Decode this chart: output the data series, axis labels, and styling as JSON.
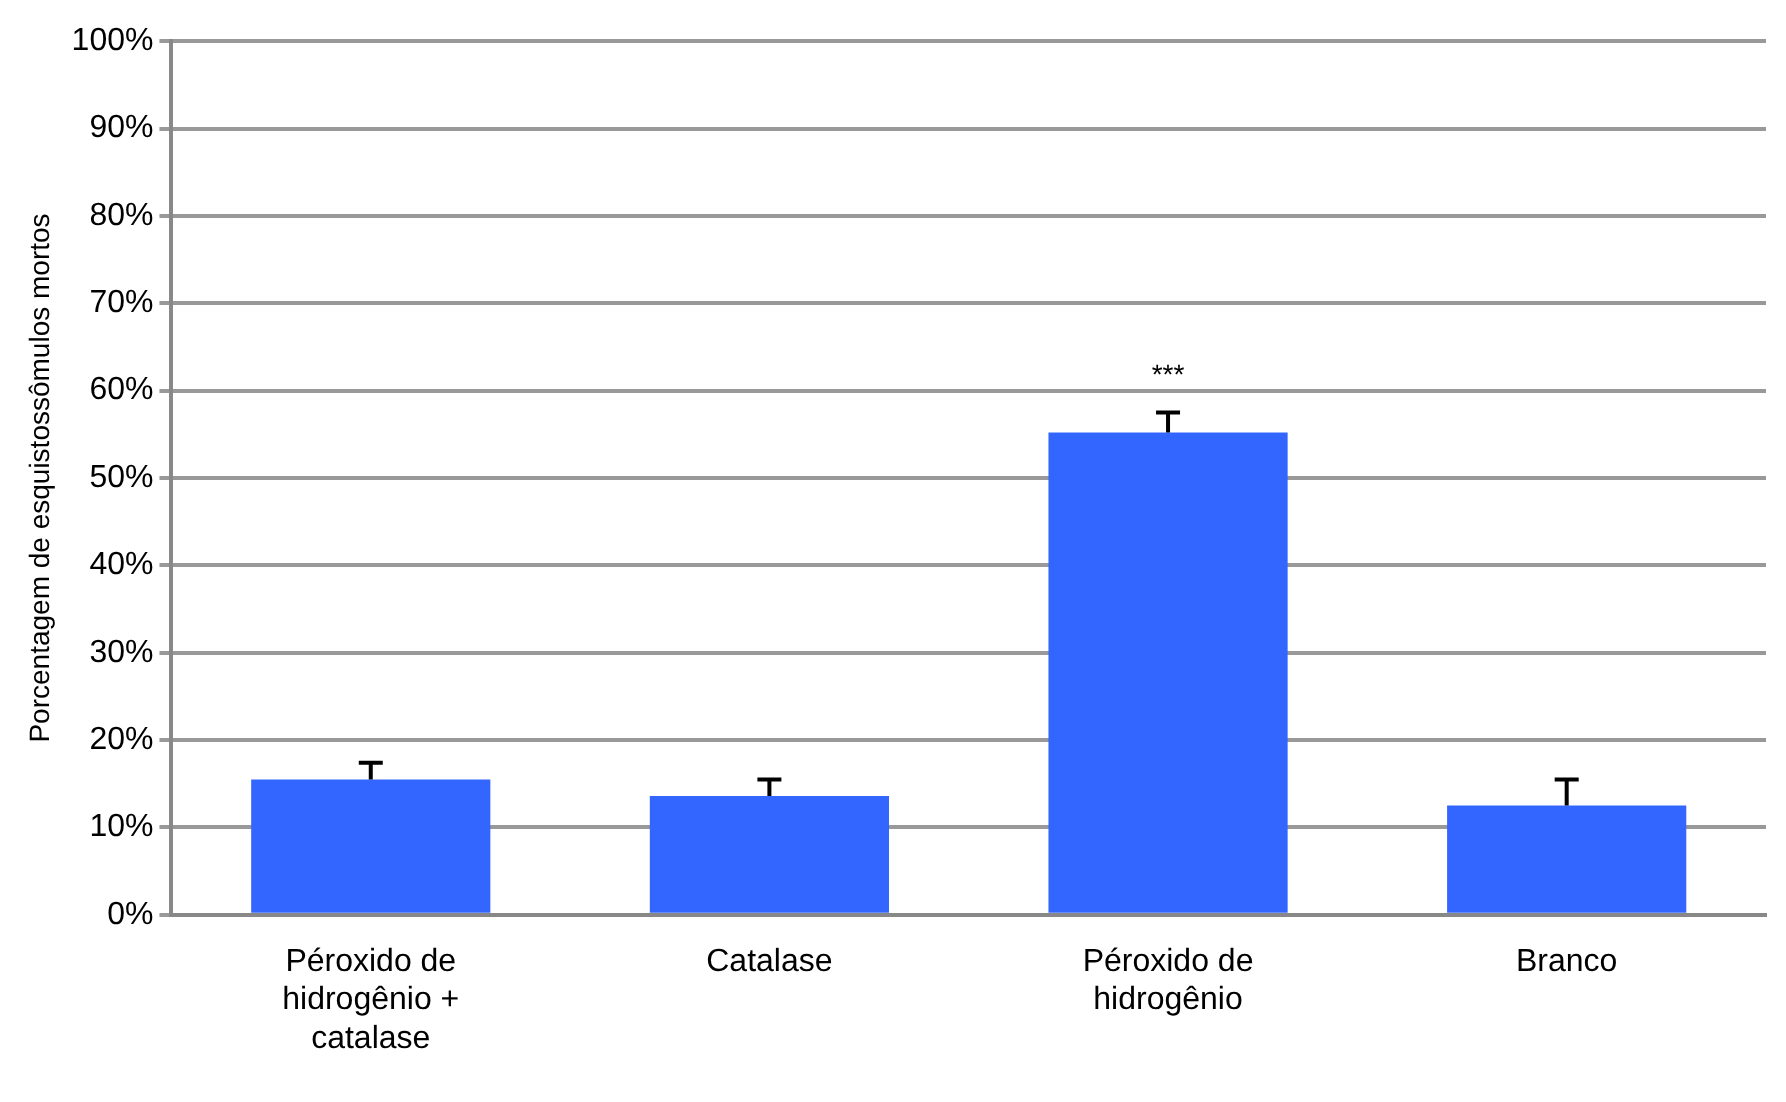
{
  "chart_data": {
    "type": "bar",
    "ylabel": "Porcentagem de esquistossômulos mortos",
    "categories": [
      "Péroxido de hidrogênio + catalase",
      "Catalase",
      "Péroxido de hidrogênio",
      "Branco"
    ],
    "values": [
      15.5,
      13.6,
      55.2,
      12.5
    ],
    "errors": [
      [
        15.5,
        17.4
      ],
      [
        13.6,
        15.5
      ],
      [
        55.2,
        57.5
      ],
      [
        12.5,
        15.5
      ]
    ],
    "color": "#3366ff",
    "ylim": [
      0,
      100
    ],
    "yticks": [
      {
        "value": 0,
        "label": "0%"
      },
      {
        "value": 10,
        "label": "10%"
      },
      {
        "value": 20,
        "label": "20%"
      },
      {
        "value": 30,
        "label": "30%"
      },
      {
        "value": 40,
        "label": "40%"
      },
      {
        "value": 50,
        "label": "50%"
      },
      {
        "value": 60,
        "label": "60%"
      },
      {
        "value": 70,
        "label": "70%"
      },
      {
        "value": 80,
        "label": "80%"
      },
      {
        "value": 90,
        "label": "90%"
      },
      {
        "value": 100,
        "label": "100%"
      }
    ],
    "grid": "y",
    "annotations": [
      "***"
    ]
  }
}
